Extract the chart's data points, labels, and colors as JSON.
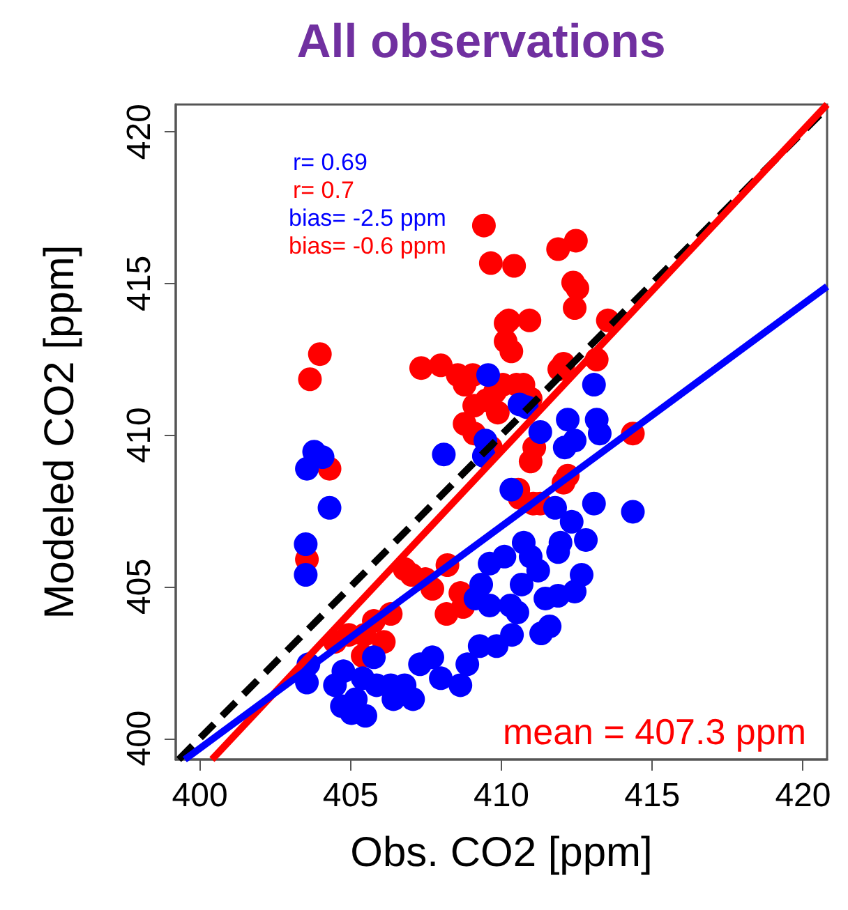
{
  "chart_data": {
    "type": "scatter",
    "title": "All observations",
    "xlabel": "Obs. CO2 [ppm]",
    "ylabel": "Modeled CO2 [ppm]",
    "xlim": [
      399.2,
      420.8
    ],
    "ylim": [
      399.3,
      420.9
    ],
    "xticks": [
      400,
      405,
      410,
      415,
      420
    ],
    "yticks": [
      400,
      405,
      410,
      415,
      420
    ],
    "grid": false,
    "annotations": [
      "r= 0.69",
      "r= 0.7",
      "bias= -2.5 ppm",
      "bias= -0.6 ppm",
      "mean = 407.3 ppm"
    ],
    "series": [
      {
        "color": "#ff0000",
        "marker": "circle",
        "x": [
          403.98,
          403.65,
          404.3,
          403.55,
          409.65,
          409.42,
          410.42,
          410.24,
          410.93,
          410.14,
          407.99,
          407.34,
          410.14,
          410.33,
          411.88,
          412.47,
          412.38,
          412.52,
          412.43,
          412.06,
          411.92,
          410.5,
          410.05,
          409.79,
          409.51,
          409.1,
          408.55,
          408.78,
          409.05,
          410.73,
          410.97,
          409.88,
          408.78,
          409.1,
          412.06,
          411.29,
          410.56,
          410.6,
          411.06,
          406.79,
          407.02,
          407.48,
          408.21,
          407.71,
          408.64,
          408.73,
          408.18,
          406.33,
          405.77,
          405.45,
          404.94,
          404.48,
          405.4,
          406.1,
          414.36,
          413.16,
          413.53,
          412.2,
          411.09,
          410.97,
          409.65
        ],
        "values": [
          412.67,
          411.84,
          408.89,
          405.9,
          415.67,
          416.91,
          415.58,
          413.78,
          413.78,
          413.69,
          412.3,
          412.21,
          413.09,
          412.76,
          416.13,
          416.41,
          415.03,
          414.84,
          414.19,
          412.35,
          412.17,
          411.66,
          411.66,
          411.43,
          411.15,
          410.97,
          411.98,
          411.66,
          411.98,
          411.66,
          411.2,
          410.74,
          410.37,
          410.05,
          408.43,
          407.74,
          408.2,
          407.93,
          407.74,
          405.58,
          405.39,
          405.25,
          405.71,
          404.93,
          404.79,
          404.33,
          404.1,
          404.1,
          403.87,
          403.41,
          403.41,
          403.18,
          402.72,
          403.18,
          410.05,
          412.49,
          413.78,
          408.66,
          409.59,
          409.13,
          409.59
        ]
      },
      {
        "color": "#0000ff",
        "marker": "circle",
        "x": [
          403.55,
          403.79,
          404.07,
          403.51,
          404.3,
          403.51,
          403.6,
          403.55,
          409.56,
          409.42,
          410.6,
          410.84,
          408.09,
          409.47,
          410.33,
          411.29,
          412.1,
          412.2,
          410.97,
          410.74,
          410.1,
          409.61,
          409.33,
          409.14,
          409.61,
          410.3,
          410.67,
          411.22,
          411.46,
          411.6,
          411.32,
          410.53,
          411.88,
          412.43,
          412.66,
          412.8,
          411.96,
          411.78,
          414.36,
          409.28,
          409.84,
          410.35,
          408.87,
          408.64,
          407.71,
          407.99,
          407.3,
          406.79,
          406.42,
          405.86,
          405.4,
          405.17,
          404.71,
          405.03,
          405.49,
          404.48,
          404.76,
          405.77,
          406.33,
          407.07,
          412.33,
          411.88,
          413.07,
          413.07,
          413.16,
          413.26,
          412.43
        ],
        "values": [
          408.89,
          409.45,
          409.27,
          405.39,
          407.6,
          406.4,
          402.44,
          401.84,
          411.98,
          409.31,
          411.01,
          410.92,
          409.36,
          409.82,
          408.2,
          410.1,
          409.59,
          410.51,
          405.99,
          406.45,
          405.99,
          405.76,
          405.07,
          404.61,
          404.38,
          404.38,
          405.07,
          405.53,
          404.61,
          403.69,
          403.46,
          404.15,
          404.7,
          404.84,
          405.39,
          406.54,
          406.45,
          407.6,
          407.47,
          403.04,
          403.04,
          403.41,
          402.44,
          401.75,
          402.67,
          401.98,
          402.44,
          401.75,
          401.29,
          401.75,
          401.98,
          401.29,
          401.06,
          400.83,
          400.74,
          401.75,
          402.21,
          402.67,
          401.75,
          401.29,
          407.14,
          406.14,
          407.74,
          411.66,
          410.51,
          410.05,
          409.82
        ]
      },
      {
        "type": "line",
        "color": "#000000",
        "line_style": "dashed",
        "x": [
          399.3,
          420.8
        ],
        "values": [
          399.3,
          420.8
        ]
      },
      {
        "type": "line",
        "color": "#ff0000",
        "line_style": "solid",
        "x": [
          400.4,
          420.8
        ],
        "values": [
          399.3,
          420.9
        ]
      },
      {
        "type": "line",
        "color": "#0000ff",
        "line_style": "solid",
        "x": [
          399.5,
          420.8
        ],
        "values": [
          399.3,
          414.9
        ]
      }
    ]
  }
}
